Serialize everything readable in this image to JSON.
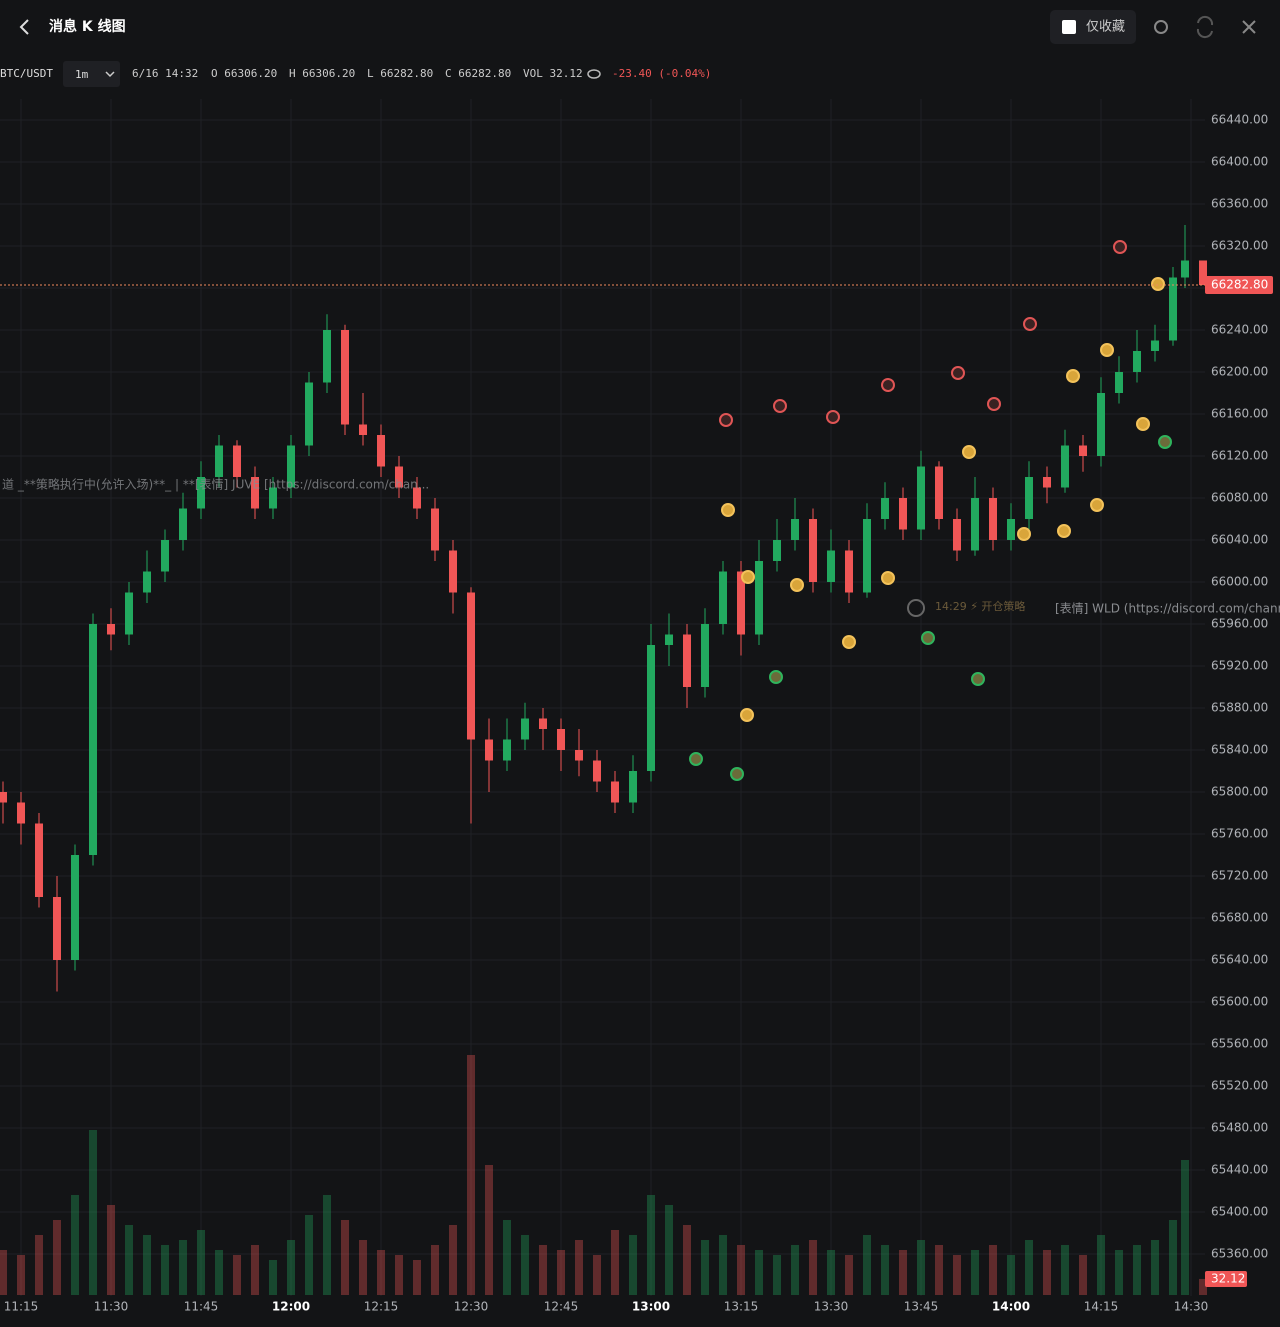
{
  "header": {
    "title": "消息 K 线图",
    "favorites_only": "仅收藏"
  },
  "legend": {
    "symbol": "BTC/USDT",
    "interval": "1m",
    "time": "6/16 14:32",
    "items": [
      "O 66306.20",
      "H 66306.20",
      "L 66282.80",
      "C 66282.80",
      "VOL 32.12"
    ],
    "change": "-23.40 (-0.04%)"
  },
  "chart_data": {
    "type": "candlestick",
    "up_color": "#22a95f",
    "down_color": "#f05656",
    "grid": true,
    "x": [
      -3,
      0,
      3,
      6,
      9,
      12,
      15,
      18,
      21,
      24,
      27,
      30,
      33,
      36,
      39,
      42,
      45,
      48,
      51,
      54,
      57,
      60,
      63,
      66,
      69,
      72,
      75,
      78,
      81,
      84,
      87,
      90,
      93,
      96,
      99,
      102,
      105,
      108,
      111,
      114,
      117,
      120,
      123,
      126,
      129,
      132,
      135,
      138,
      141,
      144,
      147,
      150,
      153,
      156,
      159,
      162,
      165,
      168,
      171,
      174,
      177,
      180,
      183,
      186,
      189,
      192,
      194,
      197
    ],
    "open": [
      65800,
      65790,
      65770,
      65700,
      65640,
      65740,
      65960,
      65950,
      65990,
      66010,
      66040,
      66070,
      66100,
      66130,
      66100,
      66070,
      66090,
      66130,
      66190,
      66240,
      66150,
      66140,
      66110,
      66090,
      66070,
      66030,
      65990,
      65850,
      65830,
      65850,
      65870,
      65860,
      65840,
      65830,
      65810,
      65790,
      65820,
      65940,
      65950,
      65900,
      65960,
      66010,
      65950,
      66020,
      66040,
      66060,
      66000,
      66030,
      65990,
      66060,
      66080,
      66050,
      66110,
      66060,
      66030,
      66080,
      66040,
      66060,
      66100,
      66090,
      66130,
      66120,
      66180,
      66200,
      66220,
      66230,
      66290,
      66306.2
    ],
    "high": [
      65810,
      65800,
      65780,
      65720,
      65750,
      65970,
      65975,
      66000,
      66030,
      66050,
      66085,
      66115,
      66140,
      66135,
      66110,
      66100,
      66140,
      66200,
      66255,
      66245,
      66180,
      66150,
      66120,
      66100,
      66080,
      66040,
      65995,
      65870,
      65870,
      65885,
      65880,
      65870,
      65860,
      65840,
      65820,
      65835,
      65960,
      65970,
      65960,
      65975,
      66020,
      66020,
      66040,
      66060,
      66080,
      66070,
      66050,
      66040,
      66075,
      66095,
      66090,
      66125,
      66115,
      66070,
      66100,
      66090,
      66075,
      66115,
      66110,
      66145,
      66140,
      66195,
      66215,
      66240,
      66245,
      66300,
      66340,
      66306.2
    ],
    "low": [
      65770,
      65750,
      65690,
      65610,
      65630,
      65730,
      65935,
      65940,
      65980,
      66000,
      66030,
      66060,
      66090,
      66090,
      66060,
      66060,
      66080,
      66120,
      66180,
      66140,
      66130,
      66100,
      66080,
      66060,
      66020,
      65970,
      65770,
      65800,
      65820,
      65840,
      65840,
      65820,
      65815,
      65800,
      65780,
      65780,
      65810,
      65920,
      65880,
      65890,
      65950,
      65930,
      65940,
      66010,
      66030,
      65990,
      65990,
      65980,
      65985,
      66050,
      66040,
      66040,
      66050,
      66020,
      66025,
      66030,
      66030,
      66050,
      66075,
      66085,
      66105,
      66110,
      66170,
      66190,
      66210,
      66225,
      66280,
      66282.8
    ],
    "close": [
      65790,
      65770,
      65700,
      65640,
      65740,
      65960,
      65950,
      65990,
      66010,
      66040,
      66070,
      66100,
      66130,
      66100,
      66070,
      66090,
      66130,
      66190,
      66240,
      66150,
      66140,
      66110,
      66090,
      66070,
      66030,
      65990,
      65850,
      65830,
      65850,
      65870,
      65860,
      65840,
      65830,
      65810,
      65790,
      65820,
      65940,
      65950,
      65900,
      65960,
      66010,
      65950,
      66020,
      66040,
      66060,
      66000,
      66030,
      65990,
      66060,
      66080,
      66050,
      66110,
      66060,
      66030,
      66080,
      66040,
      66060,
      66100,
      66090,
      66130,
      66120,
      66180,
      66200,
      66220,
      66230,
      66290,
      66306.2,
      66282.8
    ],
    "volume": [
      90,
      80,
      120,
      150,
      200,
      330,
      180,
      140,
      120,
      100,
      110,
      130,
      90,
      80,
      100,
      70,
      110,
      160,
      200,
      150,
      110,
      90,
      80,
      70,
      100,
      140,
      480,
      260,
      150,
      120,
      100,
      90,
      110,
      80,
      130,
      120,
      200,
      180,
      140,
      110,
      120,
      100,
      90,
      80,
      100,
      110,
      90,
      80,
      120,
      100,
      90,
      110,
      100,
      80,
      90,
      100,
      80,
      110,
      90,
      100,
      80,
      120,
      90,
      100,
      110,
      150,
      270,
      32.12
    ],
    "xlim": [
      -3.5,
      197
    ],
    "ylim": [
      65320,
      66460
    ],
    "vlim": [
      0,
      600
    ],
    "xticks": [
      {
        "value": 0,
        "label": "11:15"
      },
      {
        "value": 15,
        "label": "11:30"
      },
      {
        "value": 30,
        "label": "11:45"
      },
      {
        "value": 45,
        "label": "12:00"
      },
      {
        "value": 60,
        "label": "12:15"
      },
      {
        "value": 75,
        "label": "12:30"
      },
      {
        "value": 90,
        "label": "12:45"
      },
      {
        "value": 105,
        "label": "13:00"
      },
      {
        "value": 120,
        "label": "13:15"
      },
      {
        "value": 135,
        "label": "13:30"
      },
      {
        "value": 150,
        "label": "13:45"
      },
      {
        "value": 165,
        "label": "14:00"
      },
      {
        "value": 180,
        "label": "14:15"
      },
      {
        "value": 195,
        "label": "14:30"
      }
    ],
    "yticks": [
      {
        "value": 65360,
        "label": "65360.00"
      },
      {
        "value": 65400,
        "label": "65400.00"
      },
      {
        "value": 65440,
        "label": "65440.00"
      },
      {
        "value": 65480,
        "label": "65480.00"
      },
      {
        "value": 65520,
        "label": "65520.00"
      },
      {
        "value": 65560,
        "label": "65560.00"
      },
      {
        "value": 65600,
        "label": "65600.00"
      },
      {
        "value": 65640,
        "label": "65640.00"
      },
      {
        "value": 65680,
        "label": "65680.00"
      },
      {
        "value": 65720,
        "label": "65720.00"
      },
      {
        "value": 65760,
        "label": "65760.00"
      },
      {
        "value": 65800,
        "label": "65800.00"
      },
      {
        "value": 65840,
        "label": "65840.00"
      },
      {
        "value": 65880,
        "label": "65880.00"
      },
      {
        "value": 65920,
        "label": "65920.00"
      },
      {
        "value": 65960,
        "label": "65960.00"
      },
      {
        "value": 66000,
        "label": "66000.00"
      },
      {
        "value": 66040,
        "label": "66040.00"
      },
      {
        "value": 66080,
        "label": "66080.00"
      },
      {
        "value": 66120,
        "label": "66120.00"
      },
      {
        "value": 66160,
        "label": "66160.00"
      },
      {
        "value": 66200,
        "label": "66200.00"
      },
      {
        "value": 66240,
        "label": "66240.00"
      },
      {
        "value": 66280,
        "label": "66280.00"
      },
      {
        "value": 66320,
        "label": "66320.00"
      },
      {
        "value": 66360,
        "label": "66360.00"
      },
      {
        "value": 66400,
        "label": "66400.00"
      },
      {
        "value": 66440,
        "label": "66440.00"
      }
    ],
    "last_price": {
      "value": 66282.8,
      "label": "66282.80"
    },
    "last_volume": {
      "value": 32.12,
      "label": "32.12"
    },
    "annotations": [
      "道 _**策略执行中(允许入场)**_ | **[表情] JUVE [https://discord.com/chan...",
      "14:29 ⚡ 开仓策略",
      "[表情] WLD (https://discord.com/channel"
    ]
  }
}
